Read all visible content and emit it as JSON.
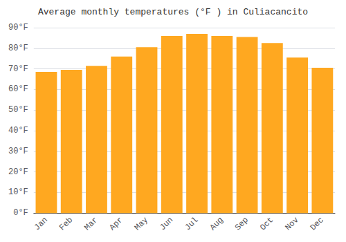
{
  "chart_data": {
    "type": "bar",
    "title": "Average monthly temperatures (°F ) in Culiacancito",
    "categories": [
      "Jan",
      "Feb",
      "Mar",
      "Apr",
      "May",
      "Jun",
      "Jul",
      "Aug",
      "Sep",
      "Oct",
      "Nov",
      "Dec"
    ],
    "values": [
      68.5,
      69.5,
      71.5,
      76.0,
      80.5,
      86.0,
      87.0,
      86.0,
      85.5,
      82.5,
      75.5,
      70.5
    ],
    "color": "#FFA820",
    "ylim": [
      0,
      90
    ],
    "yticks": [
      {
        "value": 0,
        "label": "0°F"
      },
      {
        "value": 10,
        "label": "10°F"
      },
      {
        "value": 20,
        "label": "20°F"
      },
      {
        "value": 30,
        "label": "30°F"
      },
      {
        "value": 40,
        "label": "40°F"
      },
      {
        "value": 50,
        "label": "50°F"
      },
      {
        "value": 60,
        "label": "60°F"
      },
      {
        "value": 70,
        "label": "70°F"
      },
      {
        "value": 80,
        "label": "80°F"
      },
      {
        "value": 90,
        "label": "90°F"
      }
    ],
    "grid": true
  }
}
